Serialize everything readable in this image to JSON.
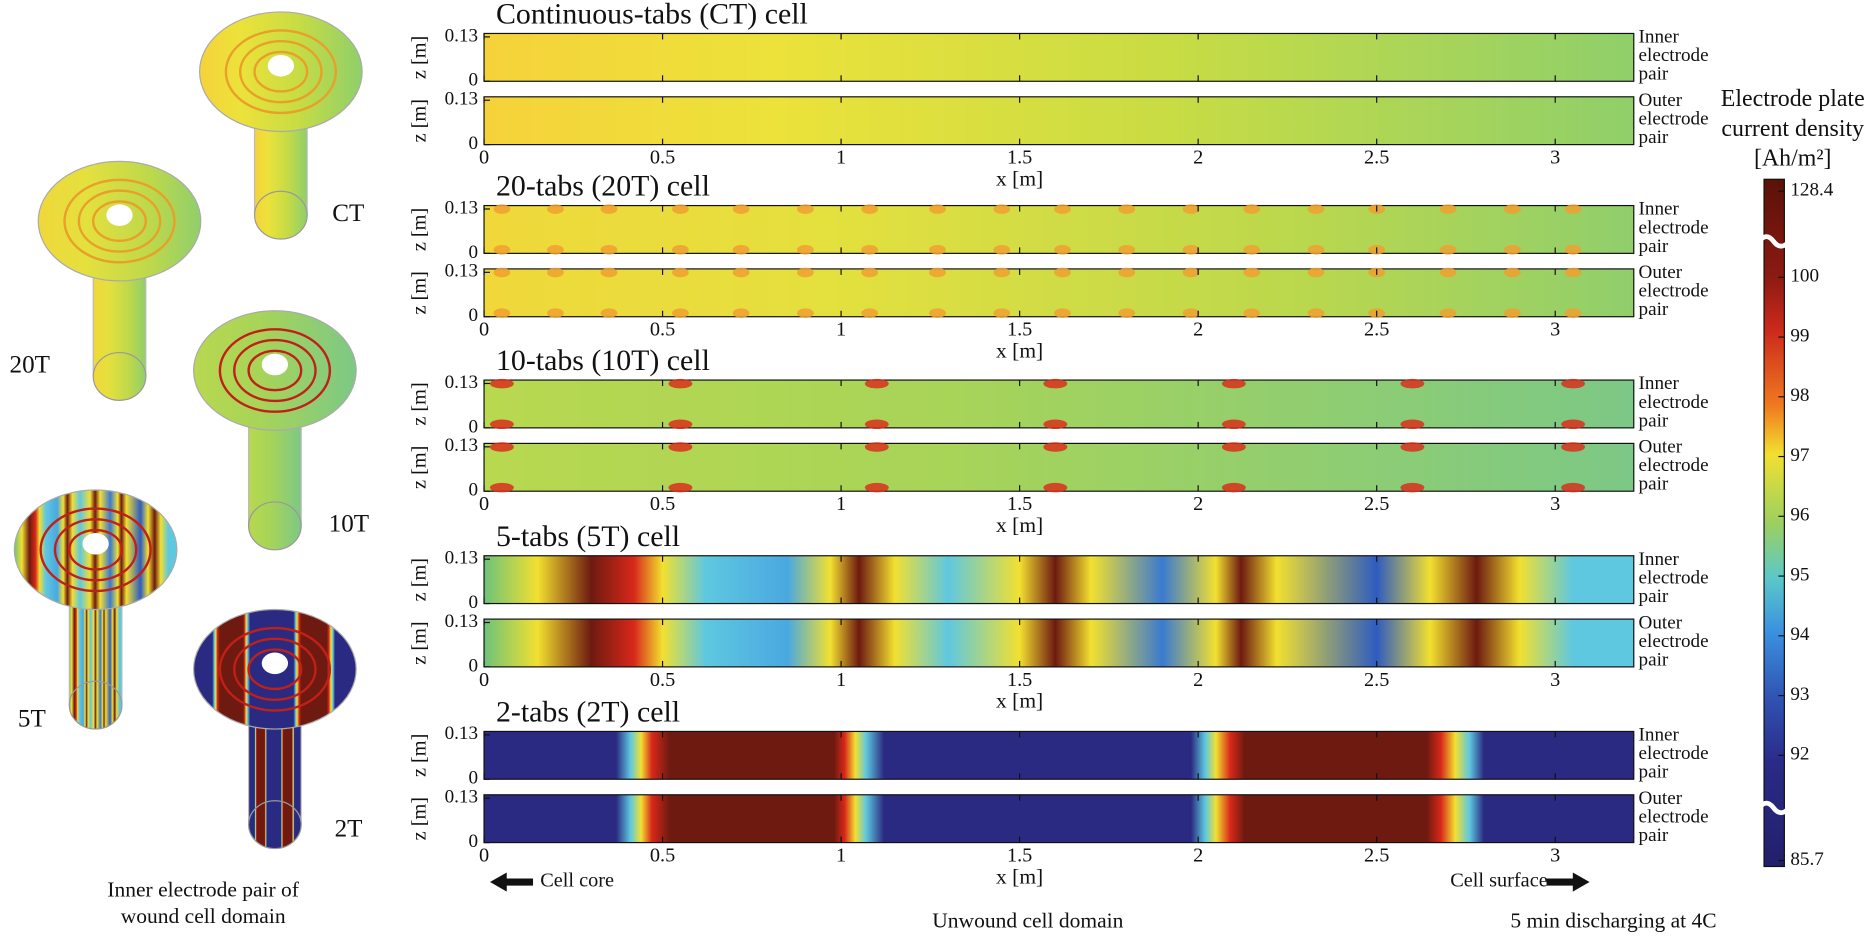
{
  "left": {
    "labels": [
      "CT",
      "20T",
      "10T",
      "5T",
      "2T"
    ],
    "caption": [
      "Inner electrode pair of",
      "wound cell domain"
    ]
  },
  "panels": [
    {
      "title": "Continuous-tabs (CT) cell"
    },
    {
      "title": "20-tabs (20T) cell"
    },
    {
      "title": "10-tabs (10T) cell"
    },
    {
      "title": "5-tabs (5T) cell"
    },
    {
      "title": "2-tabs (2T) cell"
    }
  ],
  "axis": {
    "xlabel": "x [m]",
    "zlabel": "z [m]",
    "xlim": [
      0,
      3.22
    ],
    "xticks": [
      0,
      0.5,
      1,
      1.5,
      2,
      2.5,
      3
    ],
    "zlim": [
      0,
      0.14
    ],
    "zticks": [
      0,
      0.13
    ],
    "strip_labels": [
      [
        "Inner",
        "electrode",
        "pair"
      ],
      [
        "Outer",
        "electrode",
        "pair"
      ]
    ]
  },
  "colorbar": {
    "title": [
      "Electrode plate",
      "current density",
      "[Ah/m²]"
    ],
    "ticks": [
      128.4,
      100,
      99,
      98,
      97,
      96,
      95,
      94,
      93,
      92,
      85.7
    ]
  },
  "footer": {
    "core": "Cell core",
    "surface": "Cell surface",
    "domain": "Unwound cell domain",
    "condition": "5 min discharging at 4C"
  }
}
